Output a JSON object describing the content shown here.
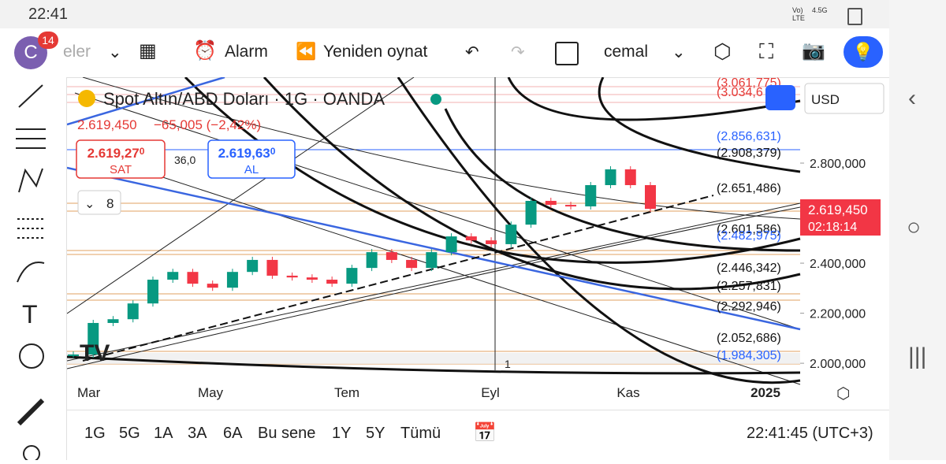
{
  "status_bar": {
    "time": "22:41",
    "network": "Vo) LTE",
    "speed": "4.5G"
  },
  "toolbar": {
    "avatar": "C",
    "badge": "14",
    "watchlist": "eler",
    "alarm": "Alarm",
    "replay": "Yeniden oynat",
    "layout": "cemal"
  },
  "chart": {
    "symbol": "Spot Altın/ABD Doları · 1G · OANDA",
    "last": "2.619,450",
    "change": "−65,005 (−2,42%)",
    "sell_price": "2.619,27",
    "sell_sup": "0",
    "sell_label": "SAT",
    "spread": "36,0",
    "buy_price": "2.619,63",
    "buy_sup": "0",
    "buy_label": "AL",
    "indicators": "8",
    "currency": "USD",
    "price_tag": "2.619,450",
    "countdown": "02:18:14",
    "event_marker": "1",
    "ylim": [
      1972,
      3137
    ],
    "yticks": [
      {
        "value": 2000,
        "label": "2.000,000"
      },
      {
        "value": 2200,
        "label": "2.200,000"
      },
      {
        "value": 2400,
        "label": "2.400,000"
      },
      {
        "value": 2800,
        "label": "2.800,000"
      }
    ],
    "xticks": [
      "Mar",
      "May",
      "Tem",
      "Eyl",
      "Kas",
      "2025"
    ],
    "levels": [
      "(3.061,775)",
      "(3.034,6",
      "(2.856,631)",
      "(2.908,379)",
      "(2.651,486)",
      "(2.601,586)",
      "(2.482,975)",
      "(2.446,342)",
      "(2.257,831)",
      "(2.292,946)",
      "(2.052,686)",
      "(1.984,305)"
    ],
    "price_series": {
      "values": [
        2035,
        2161,
        2176,
        2239,
        2334,
        2365,
        2318,
        2302,
        2365,
        2413,
        2350,
        2343,
        2334,
        2318,
        2381,
        2444,
        2413,
        2381,
        2444,
        2507,
        2491,
        2476,
        2554,
        2649,
        2633,
        2627,
        2712,
        2775,
        2712,
        2617
      ]
    }
  },
  "bottom_bar": {
    "ranges": [
      "1G",
      "5G",
      "1A",
      "3A",
      "6A",
      "Bu sene",
      "1Y",
      "5Y",
      "Tümü"
    ],
    "clock": "22:41:45 (UTC+3)"
  }
}
